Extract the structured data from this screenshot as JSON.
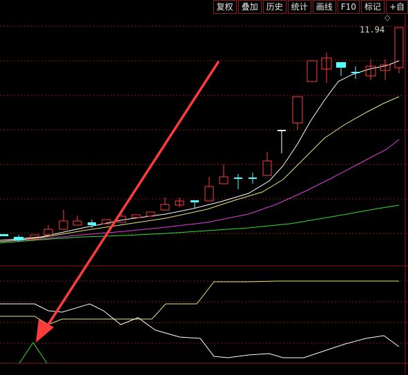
{
  "toolbar": {
    "buttons": [
      "复权",
      "叠加",
      "历史",
      "统计",
      "画线",
      "F10",
      "标记",
      "+自"
    ]
  },
  "price_label": "11.94",
  "marker_icon": "diamond-icon",
  "colors": {
    "background": "#000000",
    "grid": "#8b1a1a",
    "up": "#ff3c3c",
    "down": "#54ffff",
    "ma5": "#ffffff",
    "ma10": "#e8e87a",
    "ma20": "#e040e0",
    "ma60": "#30e030",
    "arrow": "#ff3b3b"
  }
}
